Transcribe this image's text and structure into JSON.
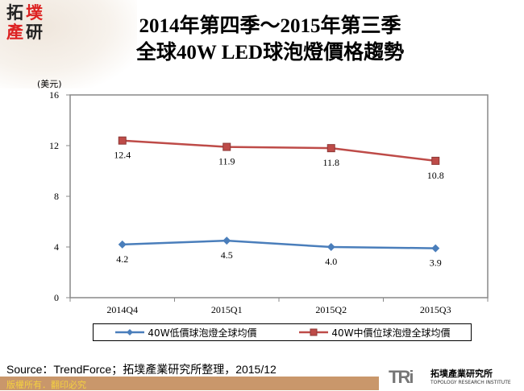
{
  "logo": {
    "chars": [
      "拓",
      "墣",
      "產",
      "研"
    ]
  },
  "title_line1": "2014年第四季～2015年第三季",
  "title_line2": "全球40W LED球泡燈價格趨勢",
  "source": "Source：TrendForce；拓墣產業研究所整理，2015/12",
  "copyright": "版權所有．翻印必究",
  "footer_logo": {
    "mark": "TRi",
    "name_cn": "拓墣產業研究所",
    "name_en": "TOPOLOGY RESEARCH INSTITUTE"
  },
  "chart_data": {
    "type": "line",
    "title": "2014年第四季～2015年第三季 全球40W LED球泡燈價格趨勢",
    "ylabel": "(美元)",
    "categories": [
      "2014Q4",
      "2015Q1",
      "2015Q2",
      "2015Q3"
    ],
    "ylim": [
      0,
      16
    ],
    "yticks": [
      "0",
      "4",
      "8",
      "12",
      "16"
    ],
    "grid": false,
    "legend": "bottom",
    "series": [
      {
        "name": "40W低價球泡燈全球均價",
        "values": [
          4.2,
          4.5,
          4.0,
          3.9
        ],
        "labels": [
          "4.2",
          "4.5",
          "4.0",
          "3.9"
        ],
        "color": "#4a7ebb",
        "marker": "diamond"
      },
      {
        "name": "40W中價位球泡燈全球均價",
        "values": [
          12.4,
          11.9,
          11.8,
          10.8
        ],
        "labels": [
          "12.4",
          "11.9",
          "11.8",
          "10.8"
        ],
        "color": "#be4b48",
        "marker": "square"
      }
    ]
  }
}
